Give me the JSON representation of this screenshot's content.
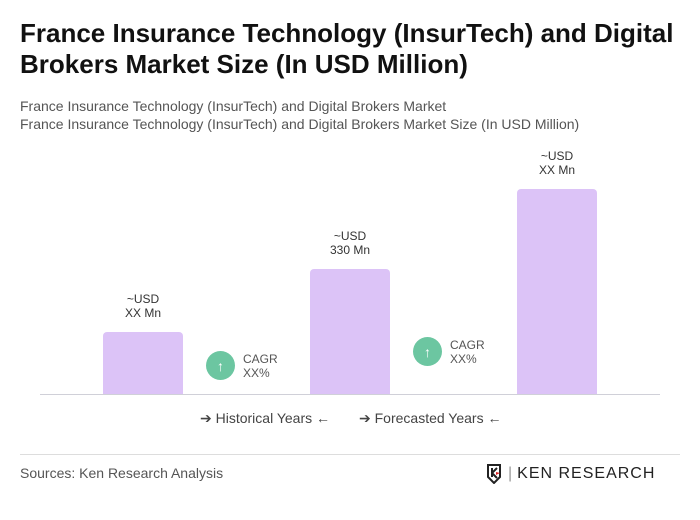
{
  "title": "France Insurance Technology (InsurTech) and Digital Brokers Market Size (In USD Million)",
  "subtitle1": "France Insurance Technology (InsurTech) and Digital Brokers Market",
  "subtitle2": "France Insurance Technology (InsurTech) and Digital Brokers Market Size (In USD Million)",
  "chart_data": {
    "type": "bar",
    "categories": [
      "",
      "",
      ""
    ],
    "values": [
      165,
      330,
      542
    ],
    "data_labels": [
      [
        "~USD",
        "XX Mn"
      ],
      [
        "~USD",
        "330 Mn"
      ],
      [
        "~USD",
        "XX Mn"
      ]
    ],
    "bar_color": "#dcc3f7",
    "cagr": [
      {
        "label": "CAGR",
        "value": "XX%"
      },
      {
        "label": "CAGR",
        "value": "XX%"
      }
    ],
    "cagr_color": "#6cc6a1",
    "legend": [
      "Historical Years",
      "Forecasted Years"
    ],
    "grid": false
  },
  "source": "Sources: Ken Research Analysis",
  "logo": "KEN RESEARCH"
}
